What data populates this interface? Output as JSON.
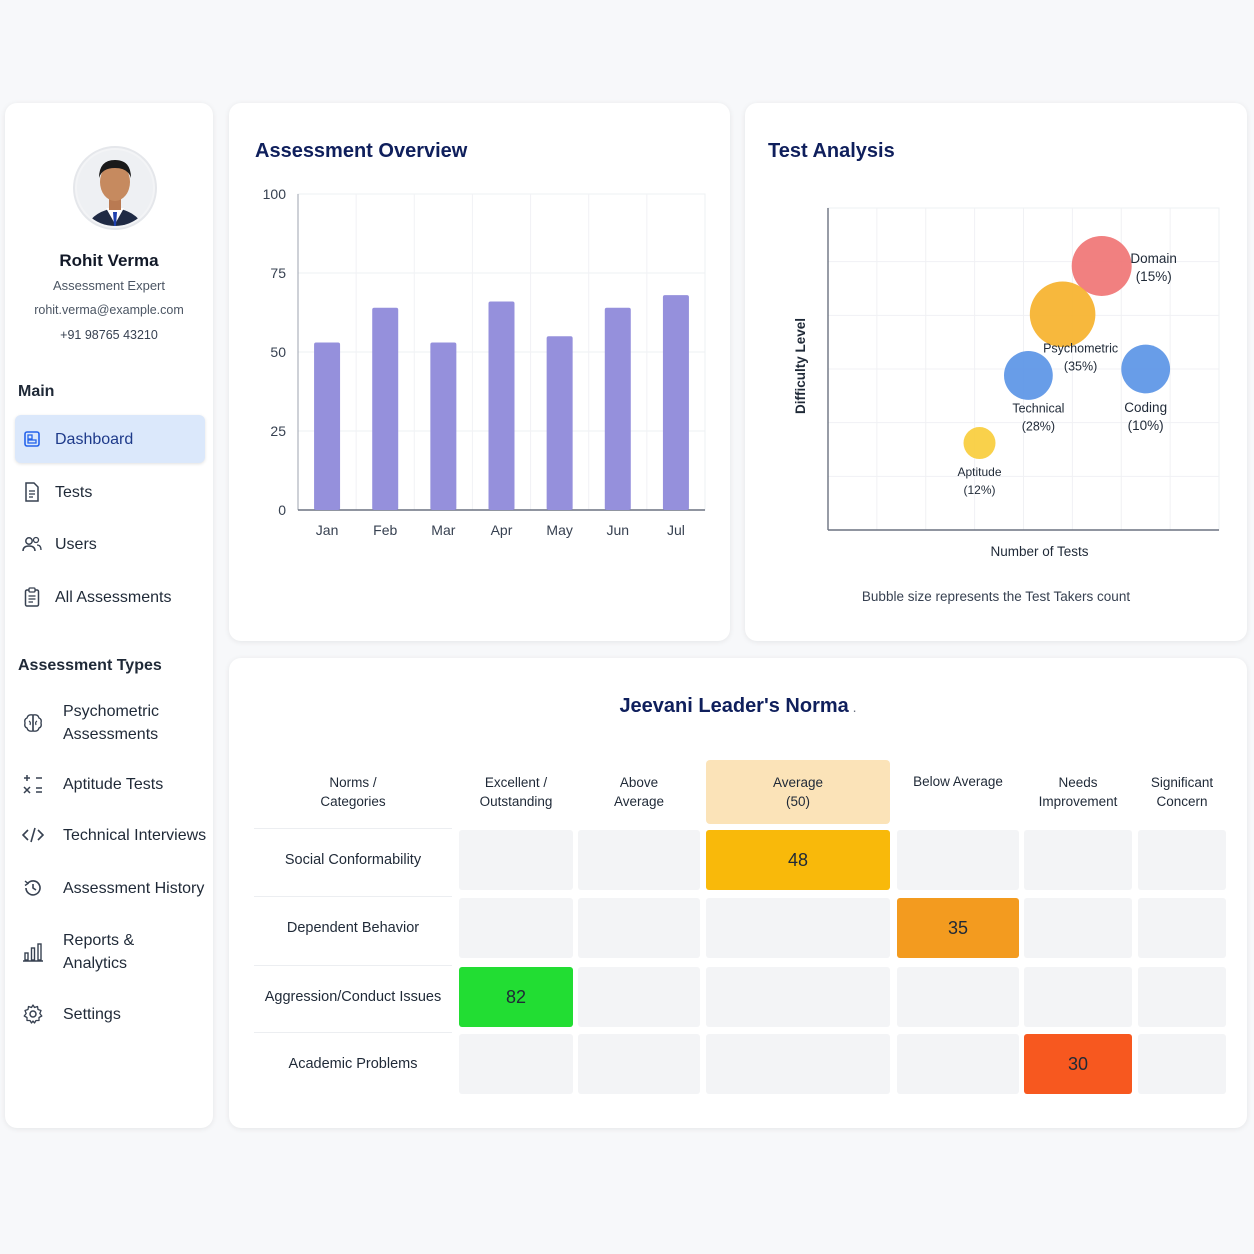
{
  "profile": {
    "name": "Rohit Verma",
    "role": "Assessment Expert",
    "email": "rohit.verma@example.com",
    "phone": "+91 98765 43210"
  },
  "sidebar": {
    "main_title": "Main",
    "main_items": [
      {
        "label": "Dashboard",
        "icon": "dashboard-icon",
        "active": true
      },
      {
        "label": "Tests",
        "icon": "document-icon"
      },
      {
        "label": "Users",
        "icon": "users-icon"
      },
      {
        "label": "All Assessments",
        "icon": "clipboard-icon"
      }
    ],
    "types_title": "Assessment Types",
    "type_items": [
      {
        "label": "Psychometric\nAssessments",
        "icon": "brain-icon"
      },
      {
        "label": "Aptitude Tests",
        "icon": "aptitude-icon"
      },
      {
        "label": "Technical Interviews",
        "icon": "code-icon"
      },
      {
        "label": "Assessment History",
        "icon": "history-icon"
      },
      {
        "label": "Reports &\nAnalytics",
        "icon": "bar-chart-icon"
      },
      {
        "label": "Settings",
        "icon": "gear-icon"
      }
    ]
  },
  "overview": {
    "title": "Assessment Overview"
  },
  "analysis": {
    "title": "Test Analysis",
    "note": "Bubble size represents the Test Takers count"
  },
  "norms": {
    "title": "Jeevani Leader's Norma",
    "columns": [
      "Norms /\nCategories",
      "Excellent /\nOutstanding",
      "Above\nAverage",
      "Average\n(50)",
      "Below Average",
      "Needs\nImprovement",
      "Significant\nConcern"
    ],
    "rows": [
      {
        "label": "Social Conformability",
        "value": "48",
        "col": 3,
        "color": "#f9b90a"
      },
      {
        "label": "Dependent Behavior",
        "value": "35",
        "col": 4,
        "color": "#f39b1f"
      },
      {
        "label": "Aggression/Conduct Issues",
        "value": "82",
        "col": 1,
        "color": "#22dd33"
      },
      {
        "label": "Academic Problems",
        "value": "30",
        "col": 5,
        "color": "#f7581f"
      }
    ]
  },
  "chart_data": [
    {
      "type": "bar",
      "title": "Assessment Overview",
      "categories": [
        "Jan",
        "Feb",
        "Mar",
        "Apr",
        "May",
        "Jun",
        "Jul"
      ],
      "values": [
        53,
        64,
        53,
        66,
        55,
        64,
        68
      ],
      "yticks": [
        "0",
        "25",
        "50",
        "75",
        "100"
      ],
      "ylim": [
        0,
        100
      ],
      "color": "#9590dc",
      "grid": true
    },
    {
      "type": "scatter",
      "title": "Test Analysis",
      "xlabel": "Number of Tests",
      "ylabel": "Difficulty Level",
      "grid": true,
      "points": [
        {
          "name": "Domain",
          "pct": "(15%)",
          "x": 5.6,
          "y": 8.2,
          "size": 1.0,
          "color": "#f07575"
        },
        {
          "name": "Psychometric",
          "pct": "(35%)",
          "x": 4.8,
          "y": 6.7,
          "size": 1.1,
          "color": "#f6b22c"
        },
        {
          "name": "Technical",
          "pct": "(28%)",
          "x": 4.1,
          "y": 4.8,
          "size": 0.8,
          "color": "#5b95e6"
        },
        {
          "name": "Coding",
          "pct": "(10%)",
          "x": 6.5,
          "y": 5.0,
          "size": 0.8,
          "color": "#5b95e6"
        },
        {
          "name": "Aptitude",
          "pct": "(12%)",
          "x": 3.1,
          "y": 2.7,
          "size": 0.5,
          "color": "#f8cd3c"
        }
      ]
    }
  ]
}
